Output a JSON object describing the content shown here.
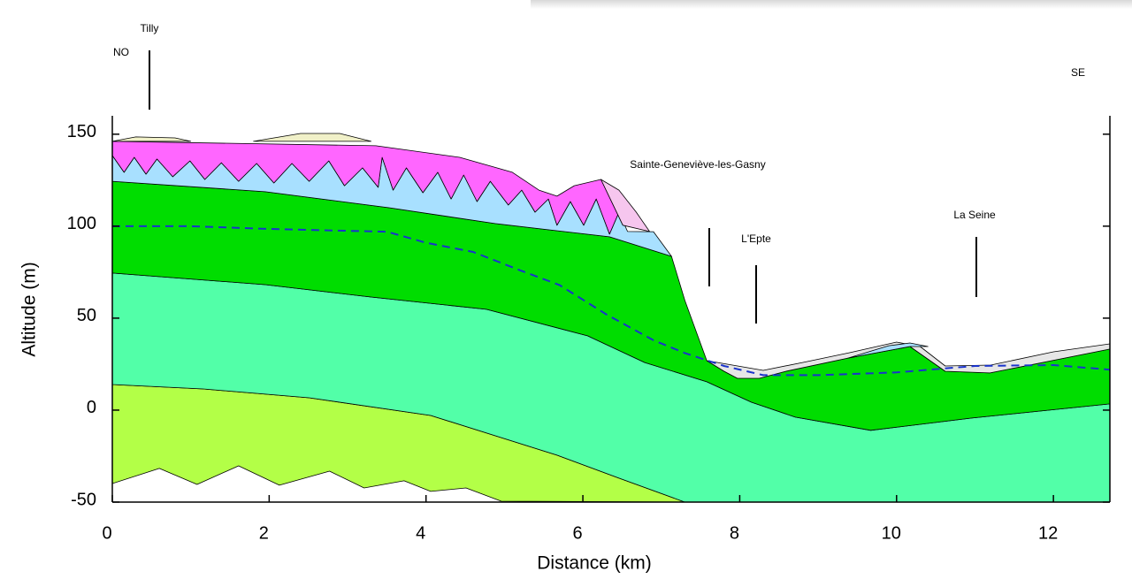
{
  "chart_data": {
    "type": "area",
    "x_label": "Distance (km)",
    "y_label": "Altitude (m)",
    "xlim": [
      0,
      12.72
    ],
    "ylim": [
      -50,
      160
    ],
    "xticks": [
      0,
      2,
      4,
      6,
      8,
      10,
      12
    ],
    "yticks": [
      150,
      100,
      50,
      0,
      -50
    ],
    "annotations": [
      "NO",
      "Tilly",
      "SE",
      "Sainte-Geneviève-les-Gasny",
      "L'Epte",
      "La Seine"
    ],
    "series": [
      {
        "color": "#b3ff47",
        "x": [
          0,
          1.16,
          2.51,
          4.06,
          4.88,
          5.67,
          6.46,
          7.3,
          4.96,
          4.51,
          4.06,
          3.72,
          3.21,
          2.77,
          2.13,
          1.61,
          1.08,
          0.6,
          0
        ],
        "values": [
          13.9,
          11.5,
          6.7,
          -2.9,
          -13.9,
          -24.5,
          -37.0,
          -50,
          -49.5,
          -42.3,
          -44.2,
          -38.4,
          -42.3,
          -33.2,
          -40.8,
          -30.3,
          -40.4,
          -31.7,
          -39.9
        ]
      },
      {
        "color": "#52ffa8",
        "x": [
          0,
          1.95,
          3.3,
          4.77,
          6.06,
          6.79,
          7.58,
          8.15,
          8.71,
          9.67,
          10.96,
          12.72,
          12.72,
          7.3,
          6.46,
          5.67,
          4.88,
          4.06,
          2.51,
          1.16,
          0
        ],
        "values": [
          74.5,
          68.2,
          61.5,
          54.8,
          40.4,
          25.9,
          15.4,
          4.3,
          -3.8,
          -11.0,
          -4.3,
          3.4,
          -50,
          -50,
          -37.0,
          -24.5,
          -13.9,
          -2.9,
          6.7,
          11.5,
          13.9
        ]
      },
      {
        "color": "#00dd00",
        "x": [
          0,
          1.95,
          3.53,
          4.88,
          6.34,
          7.13,
          7.3,
          7.58,
          7.8,
          7.97,
          8.25,
          8.59,
          9.38,
          10.17,
          10.62,
          11.19,
          11.86,
          12.72,
          12.72,
          10.96,
          9.67,
          8.71,
          8.15,
          7.58,
          6.79,
          6.06,
          4.77,
          3.3,
          1.95,
          0
        ],
        "values": [
          124.4,
          118.7,
          110.0,
          101.4,
          94.2,
          83.6,
          59.6,
          26.9,
          21.1,
          17.3,
          17.3,
          21.1,
          28.3,
          34.6,
          21.1,
          20.2,
          25.9,
          33.2,
          3.4,
          -4.3,
          -11.0,
          -3.8,
          4.3,
          15.4,
          25.9,
          40.4,
          54.8,
          61.5,
          68.2,
          74.5
        ]
      },
      {
        "color": "#e6e6e6",
        "x": [
          7.58,
          7.8,
          7.97,
          8.25,
          8.59,
          9.38,
          10.17,
          10.62,
          11.19,
          11.86,
          12.72,
          12.72,
          12.0,
          11.2,
          10.62,
          10.3,
          10.0,
          9.4,
          8.8,
          8.3,
          7.58
        ],
        "values": [
          26.9,
          21.1,
          17.3,
          17.3,
          21.1,
          28.3,
          34.6,
          21.1,
          20.2,
          25.9,
          33.2,
          36.0,
          31.7,
          24.5,
          24.0,
          34.6,
          37.0,
          31.2,
          25.9,
          21.6,
          26.9
        ]
      },
      {
        "color": "#a8e0ff",
        "x": [
          9.38,
          9.9,
          10.17,
          10.4,
          10.17
        ],
        "values": [
          28.3,
          35.0,
          36.5,
          34.6,
          34.6
        ]
      },
      {
        "color": "#a8e0ff",
        "x": [
          0,
          0.15,
          0.28,
          0.43,
          0.57,
          0.77,
          0.99,
          1.18,
          1.39,
          1.61,
          1.84,
          2.06,
          2.29,
          2.51,
          2.76,
          2.96,
          3.19,
          3.39,
          3.44,
          3.58,
          3.75,
          3.96,
          4.15,
          4.32,
          4.48,
          4.65,
          4.82,
          5.05,
          5.22,
          5.39,
          5.56,
          5.67,
          5.84,
          6.01,
          6.17,
          6.34,
          6.46,
          6.57,
          6.9,
          7.13,
          6.34,
          4.88,
          3.53,
          1.95,
          0
        ],
        "values": [
          138.4,
          129.3,
          137.4,
          128.3,
          136.5,
          126.9,
          135.5,
          125.4,
          134.5,
          124.4,
          134.1,
          123.5,
          134.1,
          124.4,
          135.5,
          122.0,
          131.7,
          121.1,
          137.4,
          119.6,
          131.7,
          118.2,
          129.3,
          114.8,
          127.8,
          113.4,
          124.4,
          111.5,
          119.6,
          107.6,
          114.8,
          100.5,
          113.4,
          100.5,
          114.8,
          95.7,
          107.6,
          97.1,
          97.0,
          83.6,
          94.2,
          101.4,
          110.0,
          118.7,
          124.4
        ]
      },
      {
        "color": "#ff66ff",
        "x": [
          0,
          3.36,
          4.43,
          5.1,
          5.44,
          5.67,
          5.89,
          6.23,
          6.51,
          6.46,
          6.34,
          6.17,
          6.01,
          5.84,
          5.67,
          5.56,
          5.39,
          5.22,
          5.05,
          4.82,
          4.65,
          4.48,
          4.32,
          4.15,
          3.96,
          3.75,
          3.58,
          3.44,
          3.39,
          3.19,
          2.96,
          2.76,
          2.51,
          2.29,
          2.06,
          1.84,
          1.61,
          1.39,
          1.18,
          0.99,
          0.77,
          0.57,
          0.43,
          0.28,
          0.15,
          0
        ],
        "values": [
          146.1,
          143.7,
          137.4,
          129.3,
          119.6,
          116.3,
          122.0,
          125.4,
          100.5,
          107.6,
          95.7,
          114.8,
          100.5,
          113.4,
          100.5,
          114.8,
          107.6,
          119.6,
          111.5,
          124.4,
          113.4,
          127.8,
          114.8,
          129.3,
          118.2,
          131.7,
          119.6,
          137.4,
          121.1,
          131.7,
          122.0,
          135.5,
          124.4,
          134.1,
          123.5,
          134.1,
          124.4,
          134.5,
          125.4,
          135.5,
          126.9,
          136.5,
          128.3,
          137.4,
          129.3,
          138.4
        ]
      },
      {
        "color": "#f6c6ee",
        "x": [
          6.23,
          6.46,
          6.68,
          6.85,
          6.51
        ],
        "values": [
          125.4,
          119.6,
          107.6,
          97.1,
          100.5
        ]
      },
      {
        "color": "#f0f0c8",
        "x": [
          0,
          0.3,
          0.8,
          1.0
        ],
        "values": [
          146.1,
          148.5,
          148.0,
          146.1
        ]
      },
      {
        "color": "#f0f0c8",
        "x": [
          1.8,
          2.4,
          2.9,
          3.3
        ],
        "values": [
          146.1,
          150.4,
          150.4,
          146.1
        ]
      },
      {
        "color": "#1a33cc",
        "dashed": true,
        "x": [
          0,
          1,
          2,
          3,
          3.5,
          4,
          4.6,
          5.2,
          5.7,
          6.3,
          6.9,
          7.3,
          7.8,
          8.3,
          9,
          10,
          11,
          12,
          12.72
        ],
        "values": [
          100,
          100,
          98.5,
          97.5,
          97,
          91,
          86,
          76,
          68,
          52,
          38,
          31,
          24,
          19,
          19,
          20.5,
          24,
          24.5,
          22
        ]
      }
    ]
  }
}
